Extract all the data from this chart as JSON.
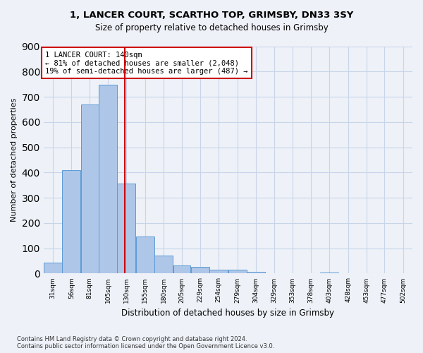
{
  "title1": "1, LANCER COURT, SCARTHO TOP, GRIMSBY, DN33 3SY",
  "title2": "Size of property relative to detached houses in Grimsby",
  "xlabel": "Distribution of detached houses by size in Grimsby",
  "ylabel": "Number of detached properties",
  "bar_edges": [
    31,
    56,
    81,
    105,
    130,
    155,
    180,
    205,
    229,
    254,
    279,
    304,
    329,
    353,
    378,
    403,
    428,
    453,
    477,
    502,
    527
  ],
  "bar_heights": [
    44,
    410,
    668,
    748,
    355,
    147,
    70,
    33,
    25,
    15,
    15,
    8,
    0,
    0,
    0,
    5,
    0,
    0,
    0,
    0
  ],
  "bar_color": "#aec6e8",
  "bar_edge_color": "#5b9bd5",
  "property_size": 140,
  "vline_color": "#cc0000",
  "annotation_text": "1 LANCER COURT: 140sqm\n← 81% of detached houses are smaller (2,048)\n19% of semi-detached houses are larger (487) →",
  "annotation_box_color": "white",
  "annotation_box_edge_color": "#cc0000",
  "ylim": [
    0,
    900
  ],
  "yticks": [
    0,
    100,
    200,
    300,
    400,
    500,
    600,
    700,
    800,
    900
  ],
  "grid_color": "#c8d4e8",
  "footnote": "Contains HM Land Registry data © Crown copyright and database right 2024.\nContains public sector information licensed under the Open Government Licence v3.0.",
  "bg_color": "#eef2f8"
}
